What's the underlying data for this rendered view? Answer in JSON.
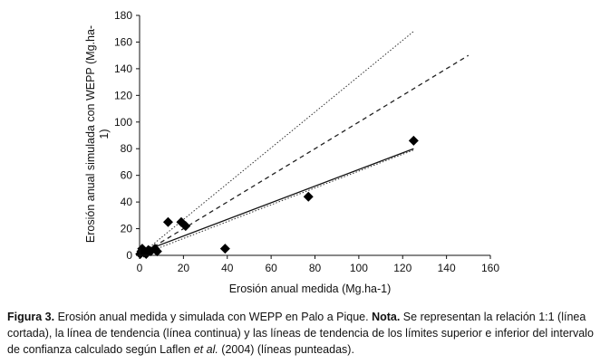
{
  "chart_data": {
    "type": "scatter",
    "xlabel": "Erosión anual medida (Mg.ha-1)",
    "ylabel": "Erosión anual simulada con WEPP (Mg.ha-1)",
    "ylabel_lines": [
      "Erosión anual simulada con WEPP (Mg.ha-",
      "1)"
    ],
    "xlim": [
      0,
      160
    ],
    "ylim": [
      0,
      180
    ],
    "xticks": [
      0,
      20,
      40,
      60,
      80,
      100,
      120,
      140,
      160
    ],
    "yticks": [
      0,
      20,
      40,
      60,
      80,
      100,
      120,
      140,
      160,
      180
    ],
    "grid": false,
    "legend": "none",
    "points": [
      {
        "x": 0.3,
        "y": 1
      },
      {
        "x": 0.8,
        "y": 3
      },
      {
        "x": 1.2,
        "y": 5
      },
      {
        "x": 2,
        "y": 2
      },
      {
        "x": 3,
        "y": 1
      },
      {
        "x": 4,
        "y": 4
      },
      {
        "x": 5,
        "y": 3
      },
      {
        "x": 7,
        "y": 5
      },
      {
        "x": 8,
        "y": 3
      },
      {
        "x": 13,
        "y": 25
      },
      {
        "x": 19,
        "y": 25
      },
      {
        "x": 21,
        "y": 22
      },
      {
        "x": 39,
        "y": 5
      },
      {
        "x": 77,
        "y": 44
      },
      {
        "x": 125,
        "y": 86
      }
    ],
    "lines": [
      {
        "role": "1:1",
        "style": "dashed",
        "x": [
          0,
          150
        ],
        "y": [
          0,
          150
        ]
      },
      {
        "role": "trend",
        "style": "solid",
        "x": [
          0,
          125
        ],
        "y": [
          2,
          80
        ]
      },
      {
        "role": "upper-limit",
        "style": "dotted",
        "x": [
          0,
          125
        ],
        "y": [
          0,
          168
        ]
      },
      {
        "role": "lower-limit",
        "style": "dotted",
        "x": [
          0,
          125
        ],
        "y": [
          0,
          79
        ]
      }
    ]
  },
  "caption": {
    "label": "Figura 3.",
    "text1": " Erosión anual medida y simulada con WEPP en Palo a Pique. ",
    "nota": "Nota.",
    "text2": " Se representan la relación 1:1 (línea cortada), la línea de tendencia (línea continua) y las líneas de tendencia de los límites superior e inferior del intervalo de confianza calculado según Laflen ",
    "etal": "et al.",
    "text3": " (2004) (líneas punteadas)."
  }
}
